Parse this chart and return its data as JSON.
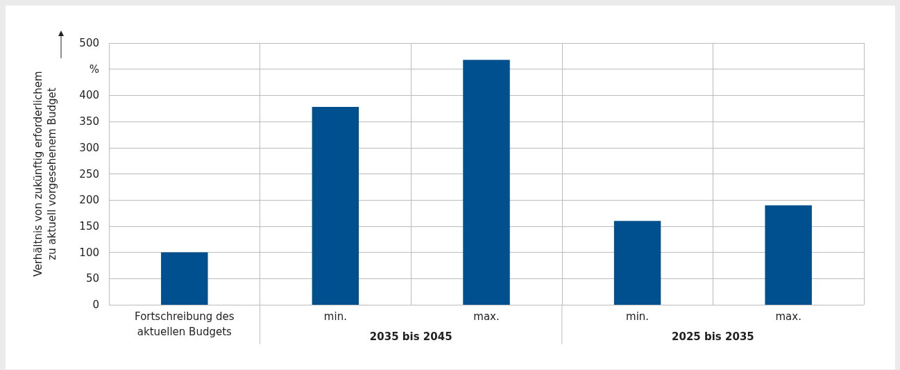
{
  "chart_data": {
    "type": "bar",
    "ylabel": "Verhältnis von zukünftig erforderlichem\nzu aktuell vorgesehenem Budget",
    "categories": [
      "Fortschreibung des\naktuellen Budgets",
      "min.",
      "max.",
      "min.",
      "max."
    ],
    "values": [
      100,
      378,
      468,
      160,
      190
    ],
    "color": "#004f8f",
    "ylim": [
      0,
      500
    ],
    "yticks": [
      0,
      50,
      100,
      150,
      200,
      250,
      300,
      350,
      400,
      {
        "value": 450,
        "label": null
      },
      500
    ],
    "grid": true,
    "annotations": [
      "%",
      "2035 bis 2045",
      "2025 bis 2035"
    ]
  }
}
